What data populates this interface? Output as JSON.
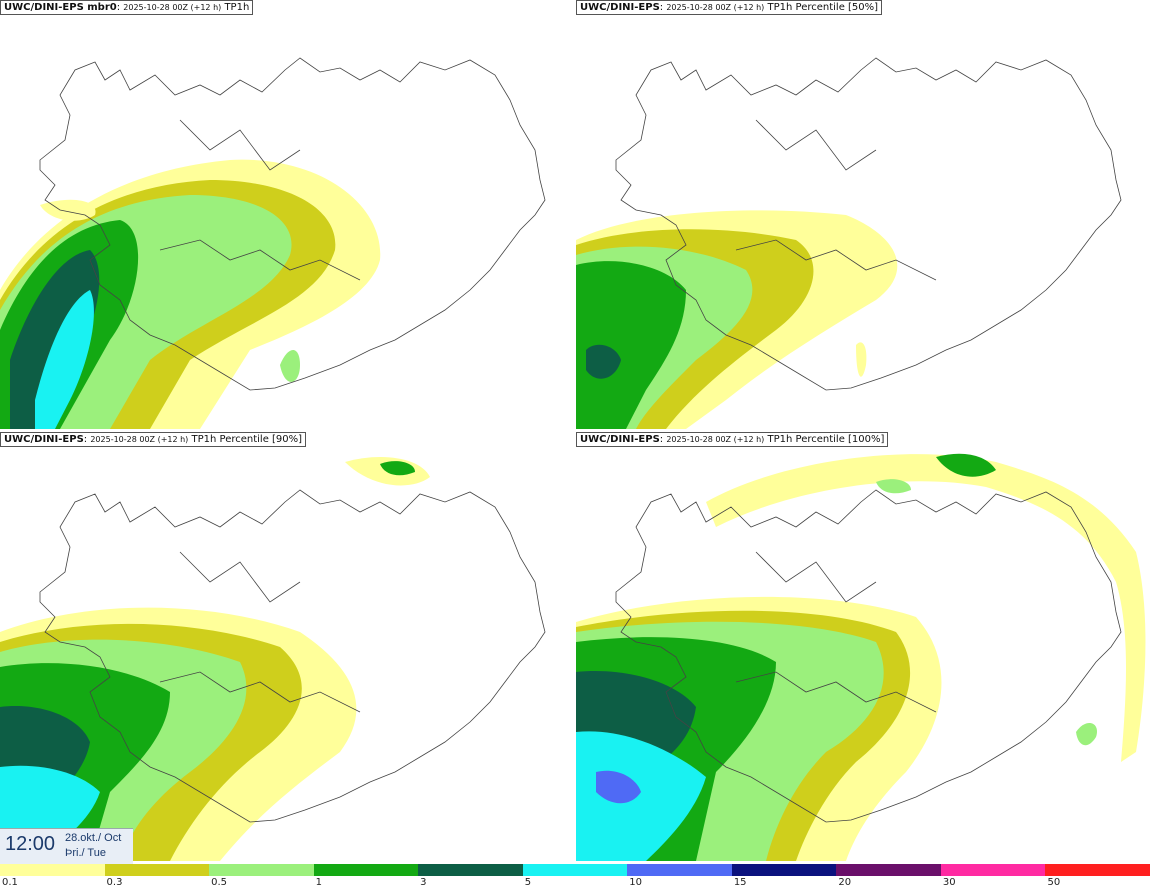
{
  "panels": [
    {
      "model": "UWC/DINI-EPS mbr0",
      "run": "2025-10-28 00Z (+12 h)",
      "field": "TP1h"
    },
    {
      "model": "UWC/DINI-EPS",
      "run": "2025-10-28 00Z (+12 h)",
      "field": "TP1h Percentile [50%]"
    },
    {
      "model": "UWC/DINI-EPS",
      "run": "2025-10-28 00Z (+12 h)",
      "field": "TP1h Percentile [90%]"
    },
    {
      "model": "UWC/DINI-EPS",
      "run": "2025-10-28 00Z (+12 h)",
      "field": "TP1h Percentile [100%]"
    }
  ],
  "valid_time": {
    "hour": "12:00",
    "date": "28.okt./ Oct",
    "day": "Þri./ Tue"
  },
  "legend": {
    "ticks": [
      "0.1",
      "0.3",
      "0.5",
      "1",
      "3",
      "5",
      "10",
      "15",
      "20",
      "30",
      "50"
    ],
    "colors": [
      "#ffff9a",
      "#cfcf1c",
      "#9bf07c",
      "#13a913",
      "#0d5e45",
      "#19f2f2",
      "#4f6af5",
      "#0b127e",
      "#6a0f6a",
      "#ff2aa2",
      "#ff1f1f"
    ]
  }
}
